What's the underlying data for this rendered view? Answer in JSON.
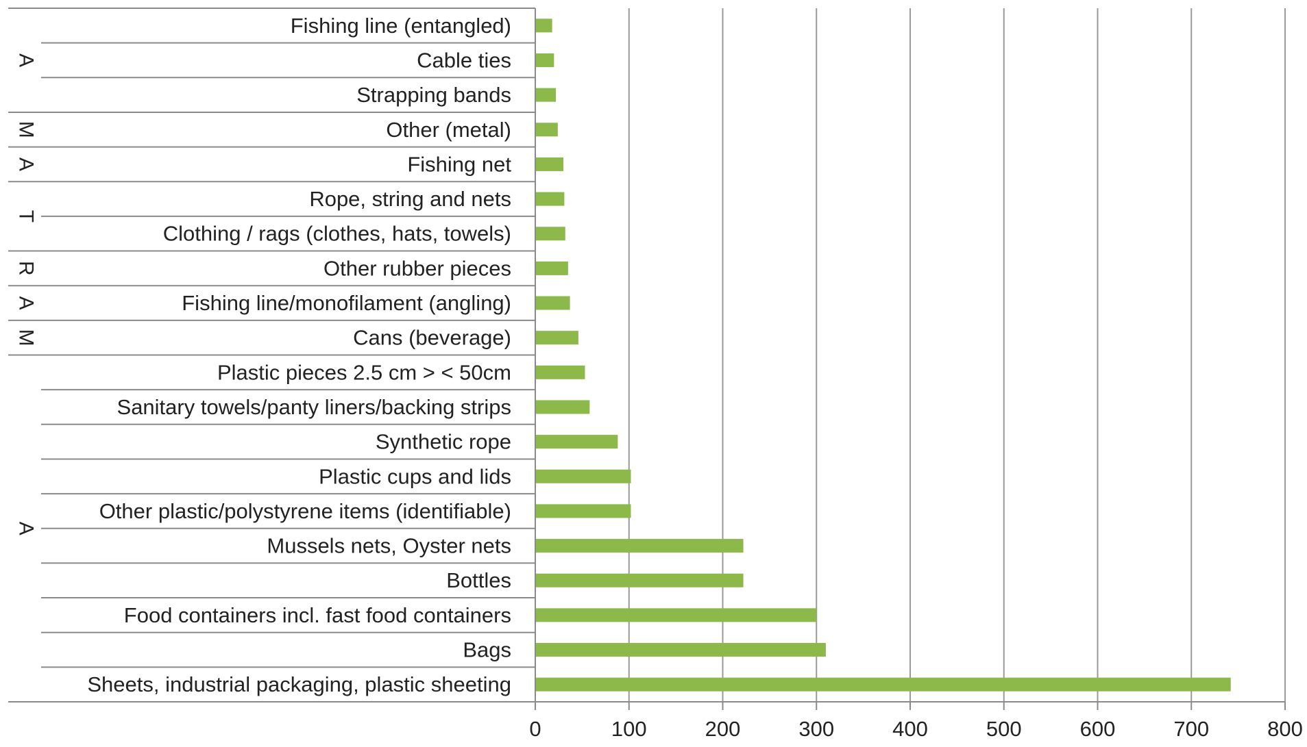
{
  "chart_data": {
    "type": "bar",
    "orientation": "horizontal",
    "categories": [
      "Fishing line (entangled)",
      "Cable ties",
      "Strapping bands",
      "Other (metal)",
      "Fishing net",
      "Rope, string and nets",
      "Clothing / rags (clothes, hats, towels)",
      "Other rubber pieces",
      "Fishing line/monofilament (angling)",
      "Cans (beverage)",
      "Plastic pieces 2.5 cm > < 50cm",
      "Sanitary towels/panty liners/backing strips",
      "Synthetic rope",
      "Plastic cups and lids",
      "Other plastic/polystyrene items (identifiable)",
      "Mussels nets, Oyster nets",
      "Bottles",
      "Food containers incl. fast food containers",
      "Bags",
      "Sheets, industrial packaging, plastic sheeting"
    ],
    "values": [
      18,
      20,
      22,
      24,
      30,
      31,
      32,
      35,
      37,
      46,
      53,
      58,
      88,
      102,
      102,
      222,
      222,
      300,
      310,
      742
    ],
    "groups": [
      {
        "letter": "A",
        "start": 0,
        "end": 2
      },
      {
        "letter": "M",
        "start": 3,
        "end": 3
      },
      {
        "letter": "A",
        "start": 4,
        "end": 4
      },
      {
        "letter": "T",
        "start": 5,
        "end": 6
      },
      {
        "letter": "R",
        "start": 7,
        "end": 7
      },
      {
        "letter": "A",
        "start": 8,
        "end": 8
      },
      {
        "letter": "M",
        "start": 9,
        "end": 9
      },
      {
        "letter": "A",
        "start": 10,
        "end": 19
      }
    ],
    "xlim": [
      0,
      800
    ],
    "xticks": [
      0,
      100,
      200,
      300,
      400,
      500,
      600,
      700,
      800
    ],
    "grid": "vertical",
    "legend": "none",
    "colors": {
      "bar": "#8db84a",
      "grid": "#9a9a9a",
      "axis": "#8a8a8a",
      "text": "#222222"
    }
  }
}
